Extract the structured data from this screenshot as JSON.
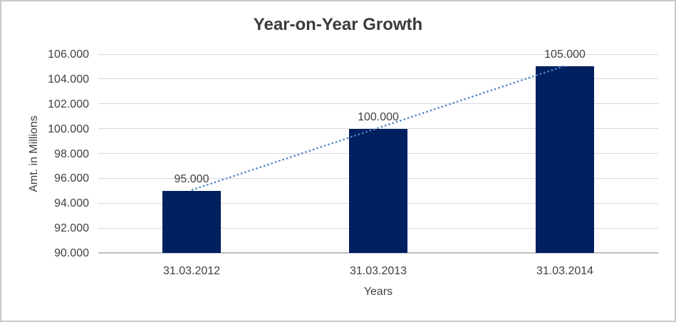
{
  "chart_data": {
    "type": "bar",
    "title": "Year-on-Year Growth",
    "xlabel": "Years",
    "ylabel": "Amt. in Millions",
    "categories": [
      "31.03.2012",
      "31.03.2013",
      "31.03.2014"
    ],
    "values": [
      95000,
      100000,
      105000
    ],
    "value_labels": [
      "95.000",
      "100.000",
      "105.000"
    ],
    "ylim": [
      90000,
      106000
    ],
    "ytick_step": 2000,
    "ytick_labels": [
      "90.000",
      "92.000",
      "94.000",
      "96.000",
      "98.000",
      "100.000",
      "102.000",
      "104.000",
      "106.000"
    ],
    "grid": true,
    "legend": "none",
    "trendline": {
      "type": "linear",
      "style": "dotted",
      "color": "#4E86C8"
    },
    "colors": {
      "bar": "#002060",
      "gridline": "#D9D9D9",
      "axis_line": "#BFBFBF",
      "text": "#404040",
      "title": "#3B3B3B",
      "frame_border": "#C9C9C9"
    }
  }
}
